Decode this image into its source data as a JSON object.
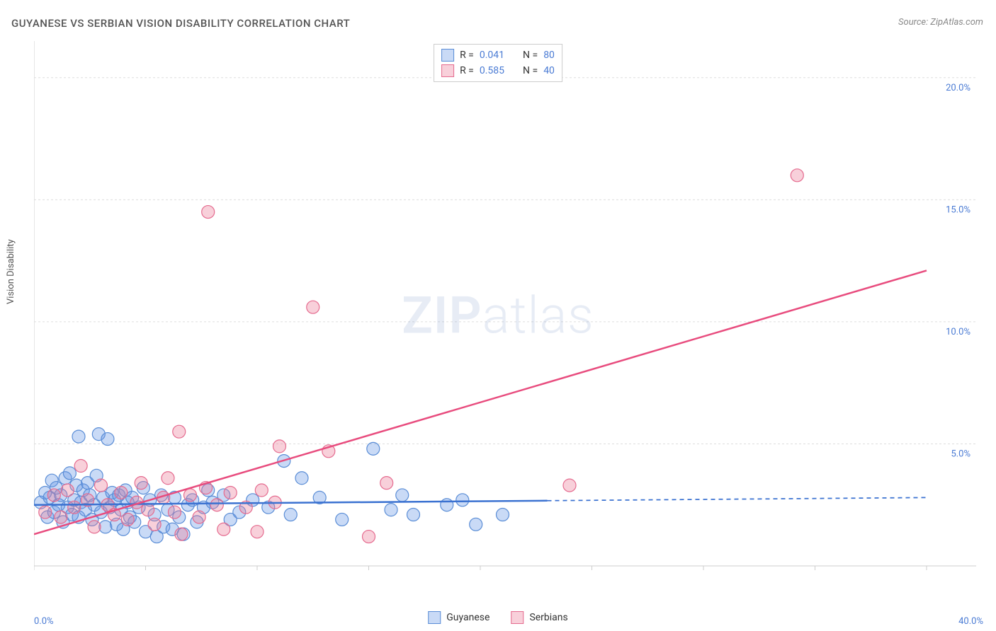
{
  "title": "GUYANESE VS SERBIAN VISION DISABILITY CORRELATION CHART",
  "source": "Source: ZipAtlas.com",
  "y_axis_label": "Vision Disability",
  "watermark_bold": "ZIP",
  "watermark_light": "atlas",
  "chart": {
    "type": "scatter",
    "background_color": "#ffffff",
    "grid_color": "#dddddd",
    "axis_line_color": "#cccccc",
    "tick_label_color": "#4a7bd4",
    "x_axis": {
      "min": 0.0,
      "max": 40.0,
      "ticks": [
        0,
        5,
        10,
        15,
        20,
        25,
        30,
        35,
        40
      ],
      "labels": {
        "start": "0.0%",
        "end": "40.0%"
      }
    },
    "y_axis": {
      "min": 0.0,
      "max": 21.5,
      "ticks": [
        5,
        10,
        15,
        20
      ],
      "labels": [
        "5.0%",
        "10.0%",
        "15.0%",
        "20.0%"
      ]
    },
    "series": [
      {
        "name": "Guyanese",
        "color_fill": "rgba(100,150,230,0.35)",
        "color_stroke": "#5a8dd6",
        "marker_radius": 9,
        "trend_line": {
          "color": "#3b72d1",
          "width": 2.5,
          "solid_x_end": 23.0,
          "y_start": 2.5,
          "y_end": 2.8
        },
        "R": "0.041",
        "N": "80",
        "points": [
          [
            0.3,
            2.6
          ],
          [
            0.5,
            3.0
          ],
          [
            0.6,
            2.0
          ],
          [
            0.7,
            2.8
          ],
          [
            0.8,
            3.5
          ],
          [
            0.9,
            2.2
          ],
          [
            1.0,
            3.2
          ],
          [
            1.1,
            2.5
          ],
          [
            1.2,
            2.9
          ],
          [
            1.3,
            1.8
          ],
          [
            1.4,
            3.6
          ],
          [
            1.5,
            2.4
          ],
          [
            1.6,
            3.8
          ],
          [
            1.7,
            2.1
          ],
          [
            1.8,
            2.7
          ],
          [
            1.9,
            3.3
          ],
          [
            2.0,
            2.0
          ],
          [
            2.0,
            5.3
          ],
          [
            2.1,
            2.6
          ],
          [
            2.2,
            3.1
          ],
          [
            2.3,
            2.3
          ],
          [
            2.4,
            3.4
          ],
          [
            2.5,
            2.9
          ],
          [
            2.6,
            1.9
          ],
          [
            2.7,
            2.5
          ],
          [
            2.8,
            3.7
          ],
          [
            2.9,
            5.4
          ],
          [
            3.0,
            2.2
          ],
          [
            3.1,
            2.8
          ],
          [
            3.2,
            1.6
          ],
          [
            3.3,
            5.2
          ],
          [
            3.4,
            2.4
          ],
          [
            3.5,
            3.0
          ],
          [
            3.6,
            2.7
          ],
          [
            3.7,
            1.7
          ],
          [
            3.8,
            2.9
          ],
          [
            3.9,
            2.3
          ],
          [
            4.0,
            1.5
          ],
          [
            4.1,
            3.1
          ],
          [
            4.2,
            2.6
          ],
          [
            4.3,
            2.0
          ],
          [
            4.4,
            2.8
          ],
          [
            4.5,
            1.8
          ],
          [
            4.7,
            2.4
          ],
          [
            4.9,
            3.2
          ],
          [
            5.0,
            1.4
          ],
          [
            5.2,
            2.7
          ],
          [
            5.4,
            2.1
          ],
          [
            5.5,
            1.2
          ],
          [
            5.7,
            2.9
          ],
          [
            5.8,
            1.6
          ],
          [
            6.0,
            2.3
          ],
          [
            6.2,
            1.5
          ],
          [
            6.3,
            2.8
          ],
          [
            6.5,
            2.0
          ],
          [
            6.7,
            1.3
          ],
          [
            6.9,
            2.5
          ],
          [
            7.1,
            2.7
          ],
          [
            7.3,
            1.8
          ],
          [
            7.6,
            2.4
          ],
          [
            7.8,
            3.1
          ],
          [
            8.0,
            2.6
          ],
          [
            8.5,
            2.9
          ],
          [
            8.8,
            1.9
          ],
          [
            9.2,
            2.2
          ],
          [
            9.8,
            2.7
          ],
          [
            10.5,
            2.4
          ],
          [
            11.2,
            4.3
          ],
          [
            11.5,
            2.1
          ],
          [
            12.0,
            3.6
          ],
          [
            12.8,
            2.8
          ],
          [
            13.8,
            1.9
          ],
          [
            15.2,
            4.8
          ],
          [
            16.0,
            2.3
          ],
          [
            16.5,
            2.9
          ],
          [
            17.0,
            2.1
          ],
          [
            18.5,
            2.5
          ],
          [
            19.2,
            2.7
          ],
          [
            19.8,
            1.7
          ],
          [
            21.0,
            2.1
          ]
        ]
      },
      {
        "name": "Serbians",
        "color_fill": "rgba(235,120,150,0.35)",
        "color_stroke": "#e56b8f",
        "marker_radius": 9,
        "trend_line": {
          "color": "#e84c7e",
          "width": 2.5,
          "solid_x_end": 40.0,
          "y_start": 1.3,
          "y_end": 12.1
        },
        "R": "0.585",
        "N": "40",
        "points": [
          [
            0.5,
            2.2
          ],
          [
            0.9,
            2.9
          ],
          [
            1.2,
            2.0
          ],
          [
            1.5,
            3.1
          ],
          [
            1.8,
            2.4
          ],
          [
            2.1,
            4.1
          ],
          [
            2.4,
            2.7
          ],
          [
            2.7,
            1.6
          ],
          [
            3.0,
            3.3
          ],
          [
            3.3,
            2.5
          ],
          [
            3.6,
            2.1
          ],
          [
            3.9,
            3.0
          ],
          [
            4.2,
            1.9
          ],
          [
            4.6,
            2.6
          ],
          [
            4.8,
            3.4
          ],
          [
            5.1,
            2.3
          ],
          [
            5.4,
            1.7
          ],
          [
            5.8,
            2.8
          ],
          [
            6.0,
            3.6
          ],
          [
            6.3,
            2.2
          ],
          [
            6.5,
            5.5
          ],
          [
            6.6,
            1.3
          ],
          [
            7.0,
            2.9
          ],
          [
            7.4,
            2.0
          ],
          [
            7.7,
            3.2
          ],
          [
            7.8,
            14.5
          ],
          [
            8.2,
            2.5
          ],
          [
            8.5,
            1.5
          ],
          [
            8.8,
            3.0
          ],
          [
            9.5,
            2.4
          ],
          [
            10.0,
            1.4
          ],
          [
            10.2,
            3.1
          ],
          [
            10.8,
            2.6
          ],
          [
            11.0,
            4.9
          ],
          [
            12.5,
            10.6
          ],
          [
            13.2,
            4.7
          ],
          [
            15.0,
            1.2
          ],
          [
            15.8,
            3.4
          ],
          [
            24.0,
            3.3
          ],
          [
            34.2,
            16.0
          ]
        ]
      }
    ]
  },
  "legend_top": {
    "rows": [
      {
        "swatch_fill": "rgba(100,150,230,0.35)",
        "swatch_stroke": "#5a8dd6",
        "r_label": "R =",
        "r_val": "0.041",
        "n_label": "N =",
        "n_val": "80"
      },
      {
        "swatch_fill": "rgba(235,120,150,0.35)",
        "swatch_stroke": "#e56b8f",
        "r_label": "R =",
        "r_val": "0.585",
        "n_label": "N =",
        "n_val": "40"
      }
    ]
  },
  "legend_bottom": {
    "items": [
      {
        "swatch_fill": "rgba(100,150,230,0.35)",
        "swatch_stroke": "#5a8dd6",
        "label": "Guyanese"
      },
      {
        "swatch_fill": "rgba(235,120,150,0.35)",
        "swatch_stroke": "#e56b8f",
        "label": "Serbians"
      }
    ]
  }
}
